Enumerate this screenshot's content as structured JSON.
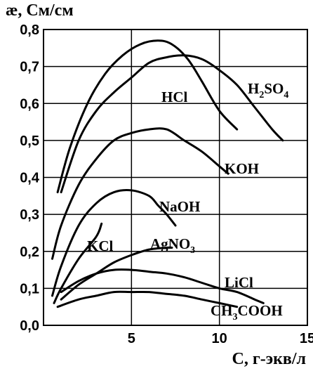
{
  "chart_data": {
    "type": "line",
    "ylabel": "æ, См/см",
    "xlabel": "C, г-экв/л",
    "xlim": [
      0,
      15
    ],
    "ylim": [
      0,
      0.8
    ],
    "x_ticks": [
      "5",
      "10",
      "15"
    ],
    "y_ticks": [
      "0,0",
      "0,1",
      "0,2",
      "0,3",
      "0,4",
      "0,5",
      "0,6",
      "0,7",
      "0,8"
    ],
    "grid": true,
    "series": [
      {
        "name": "HCl",
        "label_parts": [
          "HCl"
        ],
        "points": [
          [
            0.8,
            0.36
          ],
          [
            1.5,
            0.48
          ],
          [
            2.5,
            0.6
          ],
          [
            3.5,
            0.68
          ],
          [
            4.5,
            0.73
          ],
          [
            5.5,
            0.76
          ],
          [
            6.5,
            0.77
          ],
          [
            7.3,
            0.76
          ],
          [
            8.2,
            0.72
          ],
          [
            9.0,
            0.66
          ],
          [
            10.0,
            0.58
          ],
          [
            11.0,
            0.53
          ]
        ]
      },
      {
        "name": "H2SO4",
        "label_parts": [
          "H",
          "2",
          "SO",
          "4"
        ],
        "points": [
          [
            1.0,
            0.36
          ],
          [
            2.0,
            0.5
          ],
          [
            3.0,
            0.58
          ],
          [
            4.0,
            0.63
          ],
          [
            5.0,
            0.67
          ],
          [
            6.0,
            0.71
          ],
          [
            7.0,
            0.725
          ],
          [
            8.0,
            0.73
          ],
          [
            9.0,
            0.72
          ],
          [
            10.0,
            0.69
          ],
          [
            11.0,
            0.65
          ],
          [
            12.0,
            0.59
          ],
          [
            13.0,
            0.53
          ],
          [
            13.6,
            0.5
          ]
        ]
      },
      {
        "name": "KOH",
        "label_parts": [
          "KOH"
        ],
        "points": [
          [
            0.5,
            0.18
          ],
          [
            1.0,
            0.27
          ],
          [
            2.0,
            0.38
          ],
          [
            3.0,
            0.45
          ],
          [
            4.0,
            0.5
          ],
          [
            5.0,
            0.52
          ],
          [
            6.0,
            0.53
          ],
          [
            7.0,
            0.53
          ],
          [
            8.0,
            0.5
          ],
          [
            9.0,
            0.47
          ],
          [
            10.0,
            0.43
          ],
          [
            10.5,
            0.41
          ]
        ]
      },
      {
        "name": "NaOH",
        "label_parts": [
          "NaOH"
        ],
        "points": [
          [
            0.5,
            0.08
          ],
          [
            1.0,
            0.16
          ],
          [
            2.0,
            0.27
          ],
          [
            3.0,
            0.33
          ],
          [
            4.0,
            0.36
          ],
          [
            5.0,
            0.365
          ],
          [
            6.0,
            0.35
          ],
          [
            6.5,
            0.325
          ],
          [
            7.0,
            0.3
          ],
          [
            7.5,
            0.27
          ]
        ]
      },
      {
        "name": "KCl",
        "label_parts": [
          "KCl"
        ],
        "points": [
          [
            0.6,
            0.06
          ],
          [
            1.0,
            0.1
          ],
          [
            2.0,
            0.18
          ],
          [
            3.0,
            0.24
          ],
          [
            3.3,
            0.275
          ]
        ]
      },
      {
        "name": "AgNO3",
        "label_parts": [
          "AgNO",
          "3"
        ],
        "points": [
          [
            1.0,
            0.07
          ],
          [
            2.0,
            0.11
          ],
          [
            3.0,
            0.14
          ],
          [
            4.0,
            0.17
          ],
          [
            5.0,
            0.19
          ],
          [
            6.0,
            0.205
          ],
          [
            7.0,
            0.21
          ],
          [
            7.3,
            0.21
          ]
        ]
      },
      {
        "name": "LiCl",
        "label_parts": [
          "LiCl"
        ],
        "points": [
          [
            1.0,
            0.09
          ],
          [
            2.0,
            0.12
          ],
          [
            3.0,
            0.14
          ],
          [
            4.0,
            0.15
          ],
          [
            5.0,
            0.15
          ],
          [
            6.0,
            0.145
          ],
          [
            7.0,
            0.14
          ],
          [
            8.0,
            0.13
          ],
          [
            9.0,
            0.115
          ],
          [
            10.0,
            0.1
          ],
          [
            11.0,
            0.09
          ],
          [
            12.0,
            0.07
          ],
          [
            12.5,
            0.06
          ]
        ]
      },
      {
        "name": "CH3COOH",
        "label_parts": [
          "CH",
          "3",
          "COOH"
        ],
        "points": [
          [
            0.8,
            0.05
          ],
          [
            2.0,
            0.07
          ],
          [
            3.0,
            0.08
          ],
          [
            4.0,
            0.09
          ],
          [
            5.0,
            0.09
          ],
          [
            6.0,
            0.09
          ],
          [
            7.0,
            0.085
          ],
          [
            8.0,
            0.08
          ],
          [
            9.0,
            0.07
          ],
          [
            10.0,
            0.06
          ],
          [
            11.0,
            0.05
          ]
        ]
      }
    ]
  }
}
